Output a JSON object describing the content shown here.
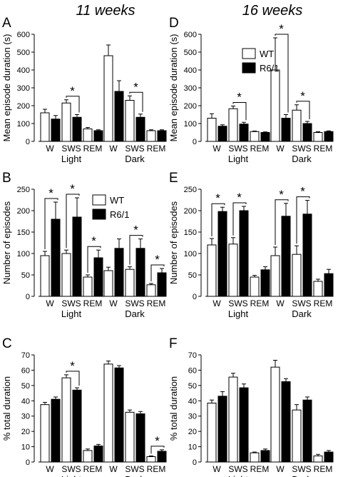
{
  "column_titles": [
    "11 weeks",
    "16 weeks"
  ],
  "legend": {
    "wt": "WT",
    "r6": "R6/1"
  },
  "chart_data": [
    {
      "type": "bar",
      "panel": "A",
      "column": 0,
      "ylabel": "Mean episode duration (s)",
      "ylim": [
        0,
        600
      ],
      "yticks": [
        0,
        100,
        200,
        300,
        400,
        500,
        600
      ],
      "groups": [
        {
          "name": "Light",
          "categories": [
            "W",
            "SWS",
            "REM"
          ],
          "series": [
            {
              "name": "WT",
              "values": [
                160,
                215,
                70
              ],
              "errors": [
                20,
                18,
                8
              ]
            },
            {
              "name": "R6/1",
              "values": [
                125,
                135,
                60
              ],
              "errors": [
                20,
                15,
                5
              ]
            }
          ]
        },
        {
          "name": "Dark",
          "categories": [
            "W",
            "SWS",
            "REM"
          ],
          "series": [
            {
              "name": "WT",
              "values": [
                480,
                230,
                60
              ],
              "errors": [
                60,
                25,
                5
              ]
            },
            {
              "name": "R6/1",
              "values": [
                280,
                135,
                60
              ],
              "errors": [
                60,
                18,
                5
              ]
            }
          ]
        }
      ],
      "significance": [
        {
          "group": 0,
          "category": 1,
          "label": "*"
        },
        {
          "group": 1,
          "category": 1,
          "label": "*"
        }
      ]
    },
    {
      "type": "bar",
      "panel": "B",
      "column": 0,
      "ylabel": "Number of episodes",
      "ylim": [
        0,
        250
      ],
      "yticks": [
        0,
        50,
        100,
        150,
        200,
        250
      ],
      "legend_shown": true,
      "groups": [
        {
          "name": "Light",
          "categories": [
            "W",
            "SWS",
            "REM"
          ],
          "series": [
            {
              "name": "WT",
              "values": [
                95,
                100,
                45
              ],
              "errors": [
                10,
                8,
                5
              ]
            },
            {
              "name": "R6/1",
              "values": [
                180,
                185,
                90
              ],
              "errors": [
                40,
                45,
                18
              ]
            }
          ]
        },
        {
          "name": "Dark",
          "categories": [
            "W",
            "SWS",
            "REM"
          ],
          "series": [
            {
              "name": "WT",
              "values": [
                60,
                63,
                27
              ],
              "errors": [
                8,
                6,
                3
              ]
            },
            {
              "name": "R6/1",
              "values": [
                112,
                112,
                55
              ],
              "errors": [
                22,
                22,
                10
              ]
            }
          ]
        }
      ],
      "significance": [
        {
          "group": 0,
          "category": 0,
          "label": "*"
        },
        {
          "group": 0,
          "category": 1,
          "label": "*"
        },
        {
          "group": 0,
          "category": 2,
          "label": "*"
        },
        {
          "group": 1,
          "category": 1,
          "label": "*"
        },
        {
          "group": 1,
          "category": 2,
          "label": "*"
        }
      ]
    },
    {
      "type": "bar",
      "panel": "C",
      "column": 0,
      "ylabel": "% total duration",
      "ylim": [
        0,
        70
      ],
      "yticks": [
        0,
        10,
        20,
        30,
        40,
        50,
        60,
        70
      ],
      "groups": [
        {
          "name": "Light",
          "categories": [
            "W",
            "SWS",
            "REM"
          ],
          "series": [
            {
              "name": "WT",
              "values": [
                37.5,
                55,
                7.5
              ],
              "errors": [
                1.5,
                2,
                1
              ]
            },
            {
              "name": "R6/1",
              "values": [
                41,
                47,
                10.5
              ],
              "errors": [
                1.5,
                1.5,
                1
              ]
            }
          ]
        },
        {
          "name": "Dark",
          "categories": [
            "W",
            "SWS",
            "REM"
          ],
          "series": [
            {
              "name": "WT",
              "values": [
                64,
                32.5,
                3.5
              ],
              "errors": [
                2,
                1.5,
                0.5
              ]
            },
            {
              "name": "R6/1",
              "values": [
                61.5,
                31.5,
                7
              ],
              "errors": [
                1.5,
                1.5,
                1
              ]
            }
          ]
        }
      ],
      "significance": [
        {
          "group": 0,
          "category": 1,
          "label": "*"
        },
        {
          "group": 1,
          "category": 2,
          "label": "*"
        }
      ]
    },
    {
      "type": "bar",
      "panel": "D",
      "column": 1,
      "ylabel": "Mean episode duration (s)",
      "ylim": [
        0,
        600
      ],
      "yticks": [
        0,
        100,
        200,
        300,
        400,
        500,
        600
      ],
      "legend_shown": true,
      "groups": [
        {
          "name": "Light",
          "categories": [
            "W",
            "SWS",
            "REM"
          ],
          "series": [
            {
              "name": "WT",
              "values": [
                130,
                183,
                55
              ],
              "errors": [
                25,
                15,
                3
              ]
            },
            {
              "name": "R6/1",
              "values": [
                85,
                97,
                50
              ],
              "errors": [
                8,
                10,
                3
              ]
            }
          ]
        },
        {
          "name": "Dark",
          "categories": [
            "W",
            "SWS",
            "REM"
          ],
          "series": [
            {
              "name": "WT",
              "values": [
                400,
                175,
                50
              ],
              "errors": [
                180,
                30,
                4
              ]
            },
            {
              "name": "R6/1",
              "values": [
                130,
                100,
                55
              ],
              "errors": [
                20,
                12,
                4
              ]
            }
          ]
        }
      ],
      "significance": [
        {
          "group": 0,
          "category": 1,
          "label": "*"
        },
        {
          "group": 1,
          "category": 0,
          "label": "*"
        },
        {
          "group": 1,
          "category": 1,
          "label": "*"
        }
      ]
    },
    {
      "type": "bar",
      "panel": "E",
      "column": 1,
      "ylabel": "Number of episodes",
      "ylim": [
        0,
        250
      ],
      "yticks": [
        0,
        50,
        100,
        150,
        200,
        250
      ],
      "groups": [
        {
          "name": "Light",
          "categories": [
            "W",
            "SWS",
            "REM"
          ],
          "series": [
            {
              "name": "WT",
              "values": [
                120,
                122,
                45
              ],
              "errors": [
                15,
                15,
                4
              ]
            },
            {
              "name": "R6/1",
              "values": [
                198,
                200,
                62
              ],
              "errors": [
                10,
                10,
                7
              ]
            }
          ]
        },
        {
          "name": "Dark",
          "categories": [
            "W",
            "SWS",
            "REM"
          ],
          "series": [
            {
              "name": "WT",
              "values": [
                95,
                98,
                35
              ],
              "errors": [
                20,
                20,
                5
              ]
            },
            {
              "name": "R6/1",
              "values": [
                187,
                192,
                53
              ],
              "errors": [
                30,
                32,
                10
              ]
            }
          ]
        }
      ],
      "significance": [
        {
          "group": 0,
          "category": 0,
          "label": "*"
        },
        {
          "group": 0,
          "category": 1,
          "label": "*"
        },
        {
          "group": 1,
          "category": 0,
          "label": "*"
        },
        {
          "group": 1,
          "category": 1,
          "label": "*"
        }
      ]
    },
    {
      "type": "bar",
      "panel": "F",
      "column": 1,
      "ylabel": "% total duration",
      "ylim": [
        0,
        70
      ],
      "yticks": [
        0,
        10,
        20,
        30,
        40,
        50,
        60,
        70
      ],
      "groups": [
        {
          "name": "Light",
          "categories": [
            "W",
            "SWS",
            "REM"
          ],
          "series": [
            {
              "name": "WT",
              "values": [
                38.5,
                55.5,
                6
              ],
              "errors": [
                2,
                2.5,
                0.5
              ]
            },
            {
              "name": "R6/1",
              "values": [
                43,
                48.5,
                7.5
              ],
              "errors": [
                3,
                2.5,
                1
              ]
            }
          ]
        },
        {
          "name": "Dark",
          "categories": [
            "W",
            "SWS",
            "REM"
          ],
          "series": [
            {
              "name": "WT",
              "values": [
                62,
                34,
                4
              ],
              "errors": [
                4.5,
                3.5,
                1
              ]
            },
            {
              "name": "R6/1",
              "values": [
                52.5,
                40.5,
                6.5
              ],
              "errors": [
                2,
                2,
                1
              ]
            }
          ]
        }
      ],
      "significance": []
    }
  ]
}
